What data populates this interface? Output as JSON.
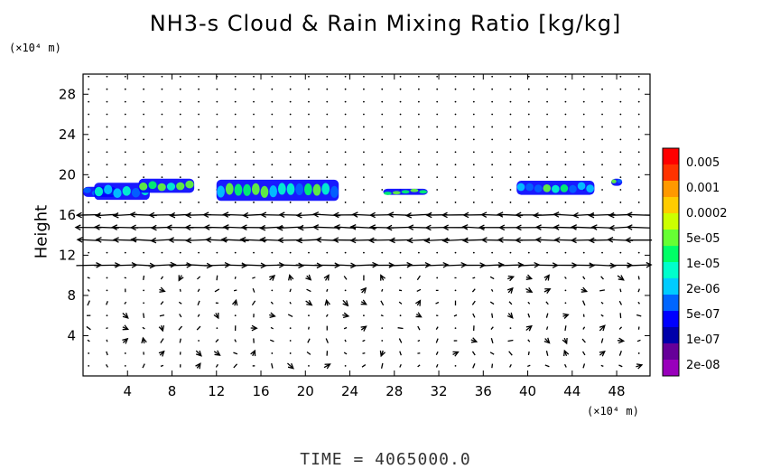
{
  "header": {
    "title": "NH3-s Cloud & Rain Mixing Ratio [kg/kg]",
    "y_unit": "(×10⁴ m)",
    "x_unit": "(×10⁴ m)"
  },
  "footer": {
    "time_label": "TIME  =  4065000.0"
  },
  "chart_data": {
    "type": "heatmap",
    "title": "NH3-s Cloud & Rain Mixing Ratio [kg/kg]",
    "xlabel": "",
    "ylabel": "Height",
    "xlim": [
      0,
      51
    ],
    "ylim": [
      0,
      30
    ],
    "x_ticks": [
      4,
      8,
      12,
      16,
      20,
      24,
      28,
      32,
      36,
      40,
      44,
      48
    ],
    "y_ticks": [
      4,
      8,
      12,
      16,
      20,
      24,
      28
    ],
    "colorbar": {
      "labels": [
        "0.005",
        "0.001",
        "0.0002",
        "5e-05",
        "1e-05",
        "2e-06",
        "5e-07",
        "1e-07",
        "2e-08"
      ],
      "colors": [
        "#ff0000",
        "#ff3300",
        "#ff9900",
        "#ffcc00",
        "#ccff00",
        "#66ff33",
        "#00ff66",
        "#00ffcc",
        "#00ccff",
        "#0066ff",
        "#0000ff",
        "#0000aa",
        "#660099",
        "#9900bb"
      ]
    },
    "cloud_patches": [
      {
        "x": [
          0,
          3
        ],
        "y": [
          17.8,
          18.8
        ]
      },
      {
        "x": [
          1,
          6
        ],
        "y": [
          17.5,
          19.2
        ]
      },
      {
        "x": [
          5,
          10
        ],
        "y": [
          18.2,
          19.6
        ]
      },
      {
        "x": [
          12,
          23
        ],
        "y": [
          17.4,
          19.5
        ]
      },
      {
        "x": [
          27,
          31
        ],
        "y": [
          18.0,
          18.6
        ]
      },
      {
        "x": [
          39,
          46
        ],
        "y": [
          18.0,
          19.4
        ]
      },
      {
        "x": [
          47.5,
          48.5
        ],
        "y": [
          18.9,
          19.6
        ]
      }
    ],
    "wind_layers": [
      {
        "y": 16.5,
        "direction": "west",
        "strength": "strong"
      },
      {
        "y": 15.0,
        "direction": "west",
        "strength": "strong"
      },
      {
        "y": 13.0,
        "direction": "west",
        "strength": "strong"
      },
      {
        "y": 11.0,
        "direction": "east",
        "strength": "strong"
      }
    ]
  },
  "colors": {
    "axis": "#000000",
    "background": "#ffffff"
  }
}
